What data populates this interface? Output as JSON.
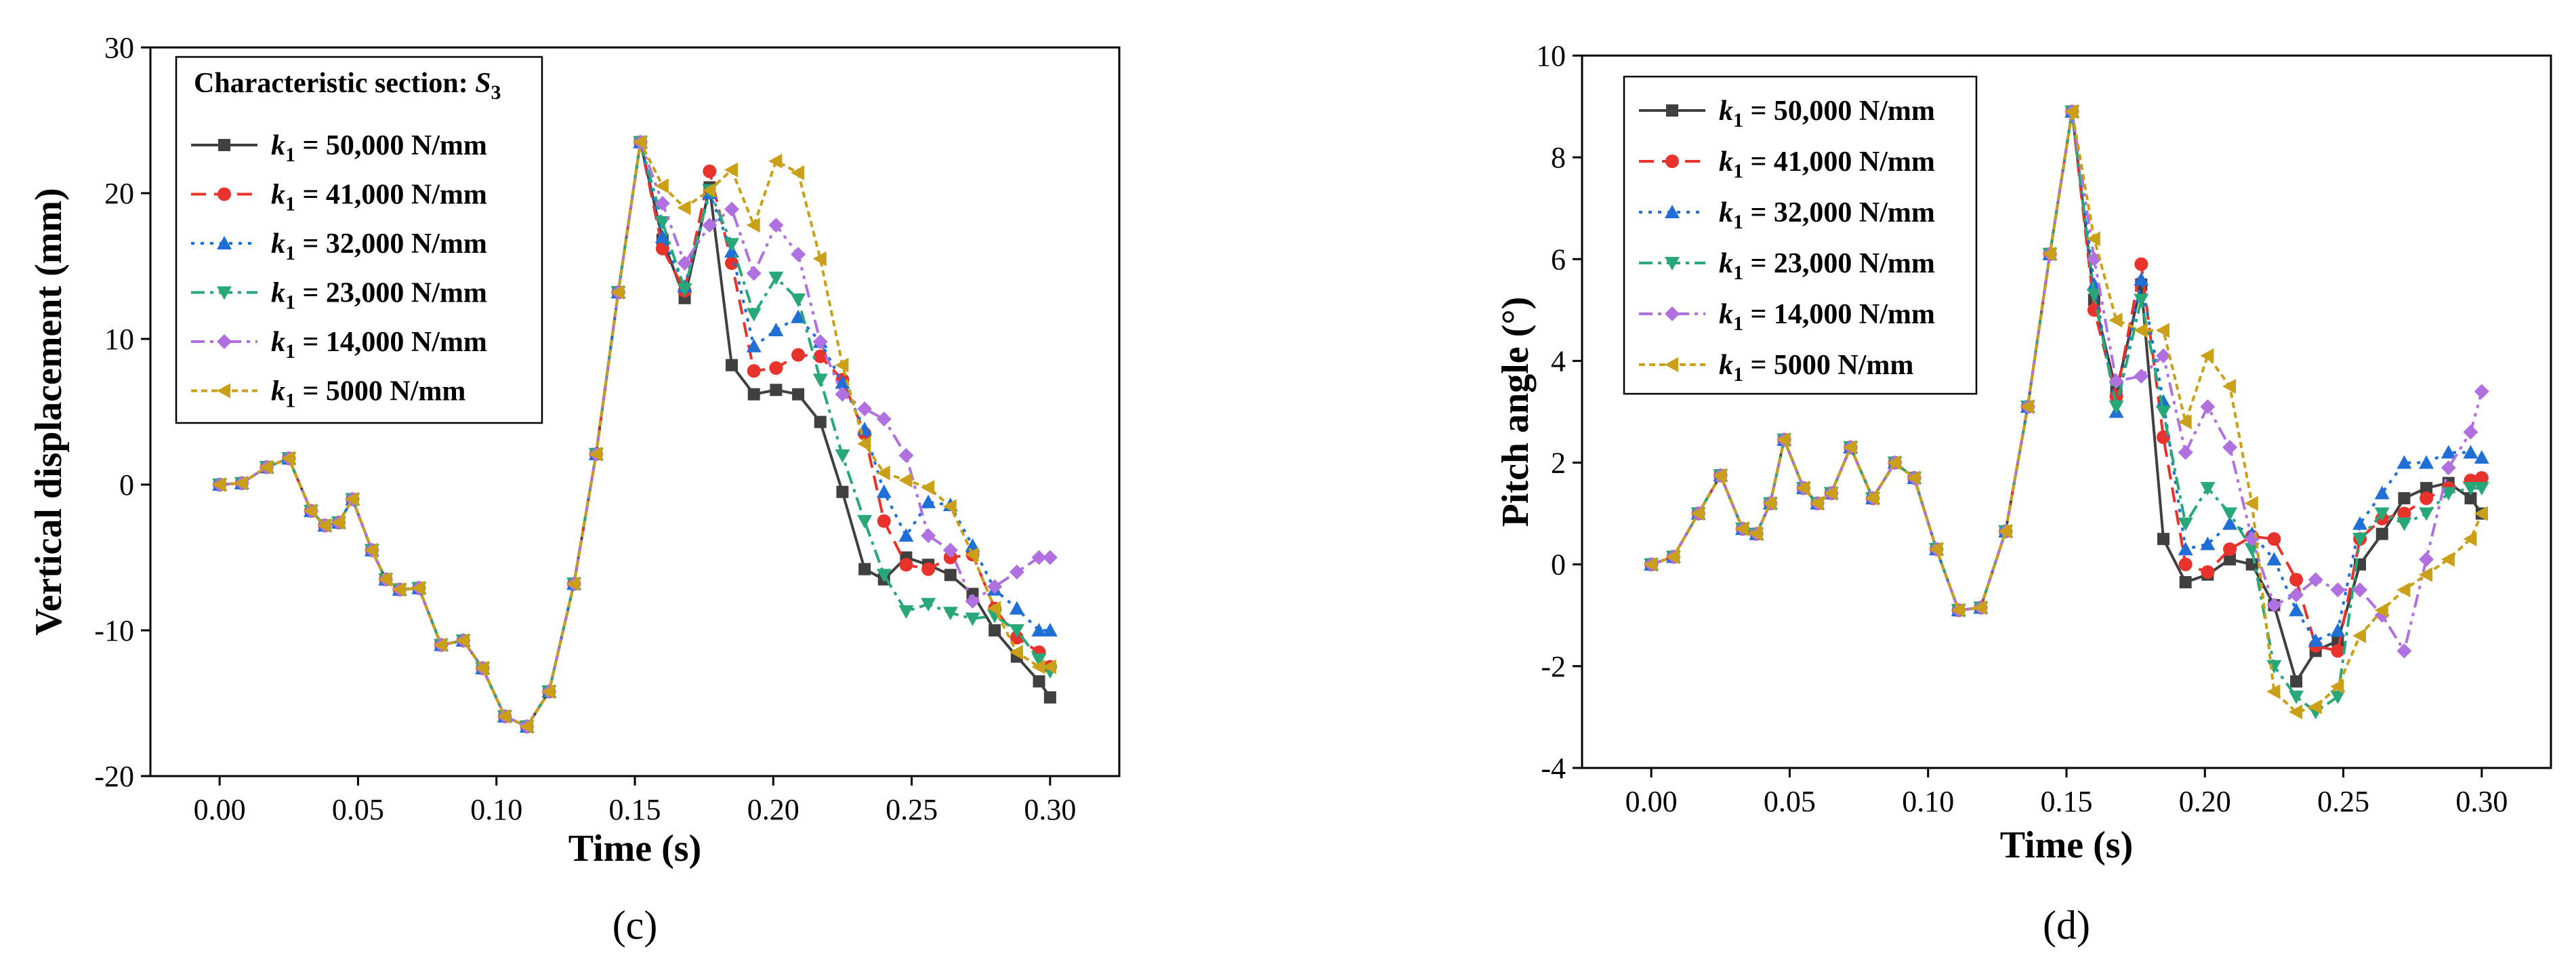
{
  "chart_data": [
    {
      "type": "line",
      "panel_label": "(c)",
      "xlabel": "Time (s)",
      "ylabel": "Vertical displacement (mm)",
      "xlim": [
        -0.025,
        0.325
      ],
      "ylim": [
        -20,
        30
      ],
      "xticks": [
        0.0,
        0.05,
        0.1,
        0.15,
        0.2,
        0.25,
        0.3
      ],
      "xtick_labels": [
        "0.00",
        "0.05",
        "0.10",
        "0.15",
        "0.20",
        "0.25",
        "0.30"
      ],
      "yticks": [
        -20,
        -10,
        0,
        10,
        20,
        30
      ],
      "ytick_labels": [
        "-20",
        "-10",
        "0",
        "10",
        "20",
        "30"
      ],
      "legend_title": {
        "prefix": "Characteristic section: ",
        "symbol": "S",
        "sub": "3"
      },
      "legend_position": "top-left",
      "x": [
        0.0,
        0.008,
        0.017,
        0.025,
        0.033,
        0.038,
        0.043,
        0.048,
        0.055,
        0.06,
        0.065,
        0.072,
        0.08,
        0.088,
        0.095,
        0.103,
        0.111,
        0.119,
        0.128,
        0.136,
        0.144,
        0.152,
        0.16,
        0.168,
        0.177,
        0.185,
        0.193,
        0.201,
        0.209,
        0.217,
        0.225,
        0.233,
        0.24,
        0.248,
        0.256,
        0.264,
        0.272,
        0.28,
        0.288,
        0.296,
        0.3
      ],
      "series": [
        {
          "name": "50,000 N/mm",
          "color": "#404040",
          "marker": "square",
          "dash": "",
          "values": [
            0,
            0.1,
            1.2,
            1.8,
            -1.8,
            -2.8,
            -2.6,
            -1.0,
            -4.5,
            -6.5,
            -7.2,
            -7.1,
            -11.0,
            -10.7,
            -12.6,
            -15.9,
            -16.6,
            -14.2,
            -6.8,
            2.1,
            13.2,
            23.5,
            16.8,
            12.8,
            20.4,
            8.2,
            6.2,
            6.5,
            6.2,
            4.3,
            -0.5,
            -5.8,
            -6.5,
            -5.0,
            -5.5,
            -6.2,
            -7.5,
            -10.0,
            -11.8,
            -13.5,
            -14.6
          ]
        },
        {
          "name": "41,000 N/mm",
          "color": "#e8322c",
          "marker": "circle",
          "dash": "22 12",
          "values": [
            0,
            0.1,
            1.2,
            1.8,
            -1.8,
            -2.8,
            -2.6,
            -1.0,
            -4.5,
            -6.5,
            -7.2,
            -7.1,
            -11.0,
            -10.7,
            -12.6,
            -15.9,
            -16.6,
            -14.2,
            -6.8,
            2.1,
            13.2,
            23.5,
            16.2,
            13.3,
            21.5,
            15.2,
            7.8,
            8.0,
            8.9,
            8.8,
            7.2,
            3.5,
            -2.5,
            -5.5,
            -5.8,
            -5.0,
            -4.8,
            -8.5,
            -10.5,
            -11.5,
            -12.5
          ]
        },
        {
          "name": "32,000 N/mm",
          "color": "#1f6fd6",
          "marker": "triangle-up",
          "dash": "5 9",
          "values": [
            0,
            0.1,
            1.2,
            1.8,
            -1.8,
            -2.8,
            -2.6,
            -1.0,
            -4.5,
            -6.5,
            -7.2,
            -7.1,
            -11.0,
            -10.7,
            -12.6,
            -15.9,
            -16.6,
            -14.2,
            -6.8,
            2.1,
            13.2,
            23.5,
            17.0,
            13.6,
            20.0,
            16.0,
            9.5,
            10.6,
            11.5,
            9.8,
            7.0,
            3.8,
            -0.5,
            -3.5,
            -1.2,
            -1.4,
            -4.2,
            -7.2,
            -8.5,
            -10.0,
            -10.0
          ]
        },
        {
          "name": "23,000 N/mm",
          "color": "#28a878",
          "marker": "triangle-down",
          "dash": "20 8 5 8",
          "values": [
            0,
            0.1,
            1.2,
            1.8,
            -1.8,
            -2.8,
            -2.6,
            -1.0,
            -4.5,
            -6.5,
            -7.2,
            -7.1,
            -11.0,
            -10.7,
            -12.6,
            -15.9,
            -16.6,
            -14.2,
            -6.8,
            2.1,
            13.2,
            23.5,
            18.0,
            13.4,
            20.2,
            16.5,
            11.7,
            14.2,
            12.7,
            7.2,
            2.0,
            -2.5,
            -6.2,
            -8.7,
            -8.2,
            -8.8,
            -9.2,
            -9.0,
            -10.0,
            -12.0,
            -12.8
          ]
        },
        {
          "name": "14,000 N/mm",
          "color": "#b070e0",
          "marker": "diamond",
          "dash": "20 8 5 8 5 8",
          "values": [
            0,
            0.1,
            1.2,
            1.8,
            -1.8,
            -2.8,
            -2.6,
            -1.0,
            -4.5,
            -6.5,
            -7.2,
            -7.1,
            -11.0,
            -10.7,
            -12.6,
            -15.9,
            -16.6,
            -14.2,
            -6.8,
            2.1,
            13.2,
            23.5,
            19.3,
            15.2,
            17.8,
            18.9,
            14.5,
            17.8,
            15.8,
            9.8,
            6.2,
            5.2,
            4.5,
            2.0,
            -3.5,
            -4.5,
            -8.0,
            -7.0,
            -6.0,
            -5.0,
            -5.0
          ]
        },
        {
          "name": "5000 N/mm",
          "color": "#c9a018",
          "marker": "triangle-left",
          "dash": "9 6",
          "values": [
            0,
            0.1,
            1.2,
            1.8,
            -1.8,
            -2.8,
            -2.6,
            -1.0,
            -4.5,
            -6.5,
            -7.2,
            -7.1,
            -11.0,
            -10.7,
            -12.6,
            -15.9,
            -16.6,
            -14.2,
            -6.8,
            2.1,
            13.2,
            23.5,
            20.5,
            19.0,
            20.2,
            21.6,
            17.8,
            22.2,
            21.4,
            15.5,
            8.2,
            2.8,
            0.8,
            0.3,
            -0.2,
            -1.5,
            -4.8,
            -8.5,
            -11.5,
            -12.5,
            -12.5
          ]
        }
      ]
    },
    {
      "type": "line",
      "panel_label": "(d)",
      "xlabel": "Time (s)",
      "ylabel": "Pitch angle (°)",
      "xlim": [
        -0.025,
        0.325
      ],
      "ylim": [
        -4,
        10
      ],
      "xticks": [
        0.0,
        0.05,
        0.1,
        0.15,
        0.2,
        0.25,
        0.3
      ],
      "xtick_labels": [
        "0.00",
        "0.05",
        "0.10",
        "0.15",
        "0.20",
        "0.25",
        "0.30"
      ],
      "yticks": [
        -4,
        -2,
        0,
        2,
        4,
        6,
        8,
        10
      ],
      "ytick_labels": [
        "-4",
        "-2",
        "0",
        "2",
        "4",
        "6",
        "8",
        "10"
      ],
      "legend_position": "top-left",
      "x": [
        0.0,
        0.008,
        0.017,
        0.025,
        0.033,
        0.038,
        0.043,
        0.048,
        0.055,
        0.06,
        0.065,
        0.072,
        0.08,
        0.088,
        0.095,
        0.103,
        0.111,
        0.119,
        0.128,
        0.136,
        0.144,
        0.152,
        0.16,
        0.168,
        0.177,
        0.185,
        0.193,
        0.201,
        0.209,
        0.217,
        0.225,
        0.233,
        0.24,
        0.248,
        0.256,
        0.264,
        0.272,
        0.28,
        0.288,
        0.296,
        0.3
      ],
      "series": [
        {
          "name": "50,000 N/mm",
          "color": "#404040",
          "marker": "square",
          "dash": "",
          "values": [
            0,
            0.15,
            1.0,
            1.75,
            0.7,
            0.6,
            1.2,
            2.45,
            1.5,
            1.2,
            1.4,
            2.3,
            1.3,
            2.0,
            1.7,
            0.3,
            -0.9,
            -0.85,
            0.65,
            3.1,
            6.1,
            8.9,
            5.2,
            3.4,
            5.5,
            0.5,
            -0.35,
            -0.2,
            0.1,
            0.0,
            -0.8,
            -2.3,
            -1.7,
            -1.5,
            0.0,
            0.6,
            1.3,
            1.5,
            1.6,
            1.3,
            1.0
          ]
        },
        {
          "name": "41,000 N/mm",
          "color": "#e8322c",
          "marker": "circle",
          "dash": "22 12",
          "values": [
            0,
            0.15,
            1.0,
            1.75,
            0.7,
            0.6,
            1.2,
            2.45,
            1.5,
            1.2,
            1.4,
            2.3,
            1.3,
            2.0,
            1.7,
            0.3,
            -0.9,
            -0.85,
            0.65,
            3.1,
            6.1,
            8.9,
            5.0,
            3.3,
            5.9,
            2.5,
            0.0,
            -0.15,
            0.3,
            0.55,
            0.5,
            -0.3,
            -1.6,
            -1.7,
            0.5,
            0.9,
            1.0,
            1.3,
            1.5,
            1.65,
            1.7
          ]
        },
        {
          "name": "32,000 N/mm",
          "color": "#1f6fd6",
          "marker": "triangle-up",
          "dash": "5 9",
          "values": [
            0,
            0.15,
            1.0,
            1.75,
            0.7,
            0.6,
            1.2,
            2.45,
            1.5,
            1.2,
            1.4,
            2.3,
            1.3,
            2.0,
            1.7,
            0.3,
            -0.9,
            -0.85,
            0.65,
            3.1,
            6.1,
            8.9,
            5.5,
            3.0,
            5.6,
            3.2,
            0.3,
            0.4,
            0.8,
            0.6,
            0.1,
            -0.9,
            -1.5,
            -1.3,
            0.8,
            1.4,
            2.0,
            2.0,
            2.2,
            2.2,
            2.1
          ]
        },
        {
          "name": "23,000 N/mm",
          "color": "#28a878",
          "marker": "triangle-down",
          "dash": "20 8 5 8",
          "values": [
            0,
            0.15,
            1.0,
            1.75,
            0.7,
            0.6,
            1.2,
            2.45,
            1.5,
            1.2,
            1.4,
            2.3,
            1.3,
            2.0,
            1.7,
            0.3,
            -0.9,
            -0.85,
            0.65,
            3.1,
            6.1,
            8.9,
            5.3,
            3.1,
            5.2,
            3.0,
            0.8,
            1.5,
            1.0,
            0.3,
            -2.0,
            -2.6,
            -2.9,
            -2.6,
            0.5,
            1.0,
            0.8,
            1.0,
            1.4,
            1.5,
            1.5
          ]
        },
        {
          "name": "14,000 N/mm",
          "color": "#b070e0",
          "marker": "diamond",
          "dash": "20 8 5 8 5 8",
          "values": [
            0,
            0.15,
            1.0,
            1.75,
            0.7,
            0.6,
            1.2,
            2.45,
            1.5,
            1.2,
            1.4,
            2.3,
            1.3,
            2.0,
            1.7,
            0.3,
            -0.9,
            -0.85,
            0.65,
            3.1,
            6.1,
            8.9,
            6.0,
            3.6,
            3.7,
            4.1,
            2.2,
            3.1,
            2.3,
            0.5,
            -0.8,
            -0.6,
            -0.3,
            -0.5,
            -0.5,
            -1.0,
            -1.7,
            0.1,
            1.9,
            2.6,
            3.4
          ]
        },
        {
          "name": "5000 N/mm",
          "color": "#c9a018",
          "marker": "triangle-left",
          "dash": "9 6",
          "values": [
            0,
            0.15,
            1.0,
            1.75,
            0.7,
            0.6,
            1.2,
            2.45,
            1.5,
            1.2,
            1.4,
            2.3,
            1.3,
            2.0,
            1.7,
            0.3,
            -0.9,
            -0.85,
            0.65,
            3.1,
            6.1,
            8.9,
            6.4,
            4.8,
            4.6,
            4.6,
            2.8,
            4.1,
            3.5,
            1.2,
            -2.5,
            -2.9,
            -2.8,
            -2.4,
            -1.4,
            -0.9,
            -0.5,
            -0.2,
            0.1,
            0.5,
            1.0
          ]
        }
      ]
    }
  ]
}
